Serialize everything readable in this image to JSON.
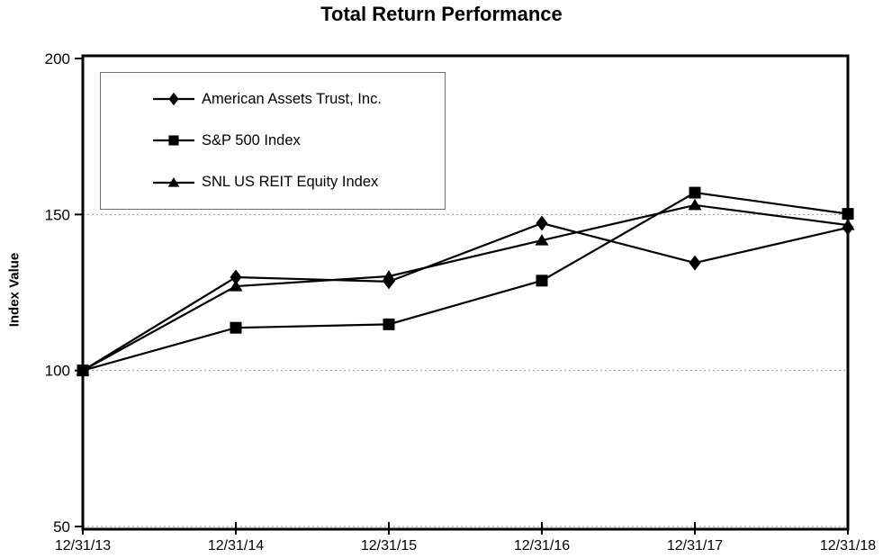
{
  "chart_data": {
    "type": "line",
    "title": "Total Return Performance",
    "xlabel": "",
    "ylabel": "Index Value",
    "categories": [
      "12/31/13",
      "12/31/14",
      "12/31/15",
      "12/31/16",
      "12/31/17",
      "12/31/18"
    ],
    "ylim": [
      50,
      200
    ],
    "yticks": [
      200,
      150,
      100,
      50
    ],
    "dotted_gridlines": [
      150,
      100,
      50
    ],
    "grid": "horizontal-dotted",
    "legend_position": "top-left-inside",
    "axis_color": "#000000",
    "gridline_color": "#999999",
    "legend_border_color": "#6e6e6e",
    "draw_order": [
      2,
      0,
      1
    ],
    "series": [
      {
        "name": "American Assets Trust, Inc.",
        "marker": "diamond",
        "color": "#000000",
        "values": [
          100.0,
          129.9,
          128.5,
          147.2,
          134.5,
          145.8
        ]
      },
      {
        "name": "S&P 500 Index",
        "marker": "square",
        "color": "#000000",
        "values": [
          100.0,
          113.7,
          114.8,
          128.8,
          157.0,
          150.2
        ]
      },
      {
        "name": "SNL US REIT Equity Index",
        "marker": "triangle",
        "color": "#000000",
        "values": [
          100.0,
          127.0,
          130.2,
          141.7,
          153.0,
          146.6
        ]
      }
    ]
  }
}
